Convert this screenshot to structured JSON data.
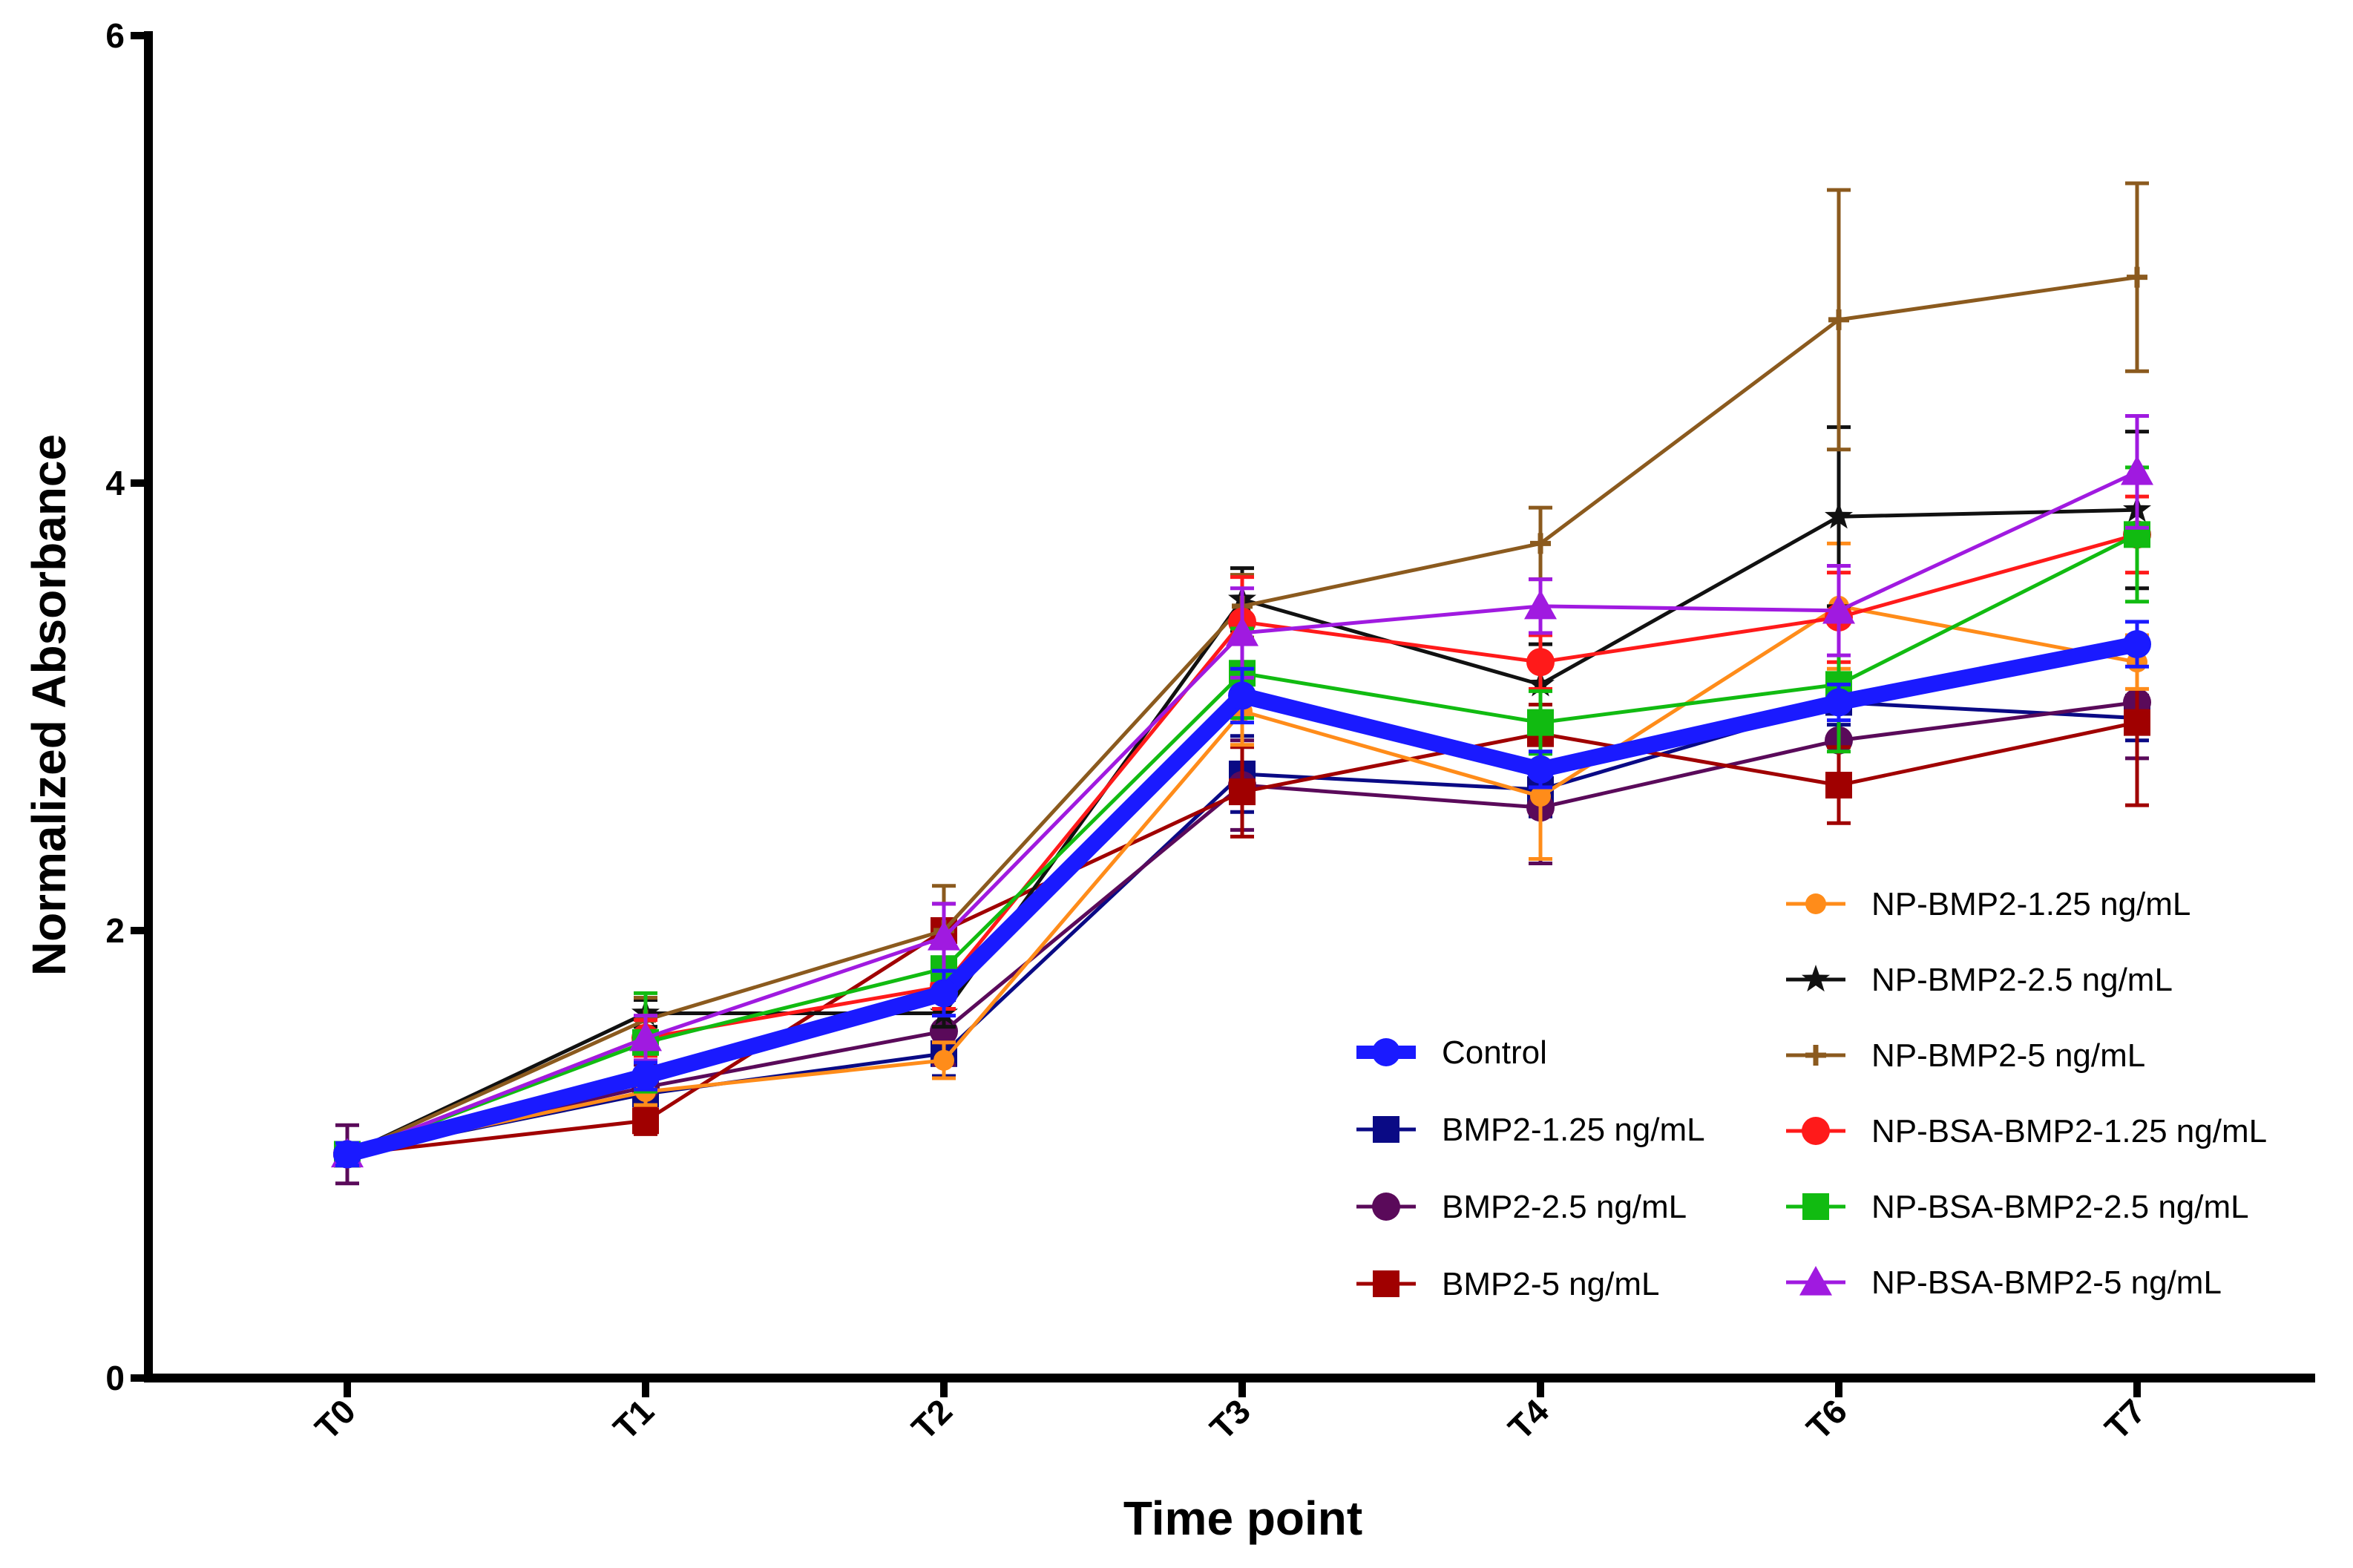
{
  "chart_data": {
    "type": "line",
    "title": "",
    "xlabel": "Time point",
    "ylabel": "Normalized Absorbance",
    "categories": [
      "T0",
      "T1",
      "T2",
      "T3",
      "T4",
      "T6",
      "T7"
    ],
    "ylim": [
      0,
      6
    ],
    "yticks": [
      "0",
      "2",
      "4",
      "6"
    ],
    "grid": false,
    "legend_position": "bottom-right",
    "series": [
      {
        "name": "Control",
        "color": "#1a1aff",
        "marker": "circle",
        "width": "heavy",
        "values": [
          1.0,
          1.35,
          1.72,
          3.05,
          2.72,
          3.02,
          3.28
        ],
        "errors": [
          0.05,
          0.06,
          0.1,
          0.12,
          0.08,
          0.08,
          0.1
        ]
      },
      {
        "name": "BMP2-1.25 ng/mL",
        "color": "#0a0a85",
        "marker": "square",
        "values": [
          1.0,
          1.27,
          1.45,
          2.7,
          2.63,
          3.02,
          2.95
        ],
        "errors": [
          0.05,
          0.07,
          0.1,
          0.17,
          0.12,
          0.1,
          0.1
        ]
      },
      {
        "name": "BMP2-2.5 ng/mL",
        "color": "#5a0a5a",
        "marker": "circle",
        "values": [
          1.0,
          1.3,
          1.55,
          2.65,
          2.55,
          2.85,
          3.02
        ],
        "errors": [
          0.13,
          0.1,
          0.15,
          0.2,
          0.25,
          0.2,
          0.25
        ]
      },
      {
        "name": "BMP2-5 ng/mL",
        "color": "#a00000",
        "marker": "square",
        "values": [
          1.0,
          1.15,
          2.0,
          2.62,
          2.88,
          2.65,
          2.93
        ],
        "errors": [
          0.05,
          0.06,
          0.12,
          0.2,
          0.13,
          0.17,
          0.37
        ]
      },
      {
        "name": "NP-BMP2-1.25 ng/mL",
        "color": "#ff8c1a",
        "marker": "circle-small",
        "values": [
          1.0,
          1.28,
          1.42,
          2.98,
          2.6,
          3.45,
          3.2
        ],
        "errors": [
          0.05,
          0.06,
          0.08,
          0.15,
          0.28,
          0.28,
          0.12
        ]
      },
      {
        "name": "NP-BMP2-2.5 ng/mL",
        "color": "#111111",
        "marker": "star",
        "values": [
          1.0,
          1.63,
          1.63,
          3.48,
          3.1,
          3.85,
          3.88
        ],
        "errors": [
          0.05,
          0.06,
          0.06,
          0.14,
          0.18,
          0.4,
          0.35
        ]
      },
      {
        "name": "NP-BMP2-5 ng/mL",
        "color": "#8b5a1e",
        "marker": "plus",
        "values": [
          1.0,
          1.6,
          2.0,
          3.45,
          3.73,
          4.73,
          4.92
        ],
        "errors": [
          0.05,
          0.1,
          0.2,
          0.14,
          0.16,
          0.58,
          0.42
        ]
      },
      {
        "name": "NP-BSA-BMP2-1.25 ng/mL",
        "color": "#ff1a1a",
        "marker": "circle",
        "values": [
          1.0,
          1.52,
          1.75,
          3.38,
          3.2,
          3.4,
          3.77
        ],
        "errors": [
          0.05,
          0.08,
          0.1,
          0.2,
          0.12,
          0.2,
          0.17
        ]
      },
      {
        "name": "NP-BSA-BMP2-2.5 ng/mL",
        "color": "#11bb11",
        "marker": "square",
        "values": [
          1.0,
          1.5,
          1.83,
          3.15,
          2.93,
          3.1,
          3.77
        ],
        "errors": [
          0.05,
          0.22,
          0.1,
          0.2,
          0.14,
          0.3,
          0.3
        ]
      },
      {
        "name": "NP-BSA-BMP2-5 ng/mL",
        "color": "#a01ae0",
        "marker": "triangle",
        "values": [
          1.0,
          1.52,
          1.97,
          3.33,
          3.45,
          3.43,
          4.05
        ],
        "errors": [
          0.05,
          0.1,
          0.15,
          0.2,
          0.12,
          0.2,
          0.25
        ]
      }
    ]
  }
}
